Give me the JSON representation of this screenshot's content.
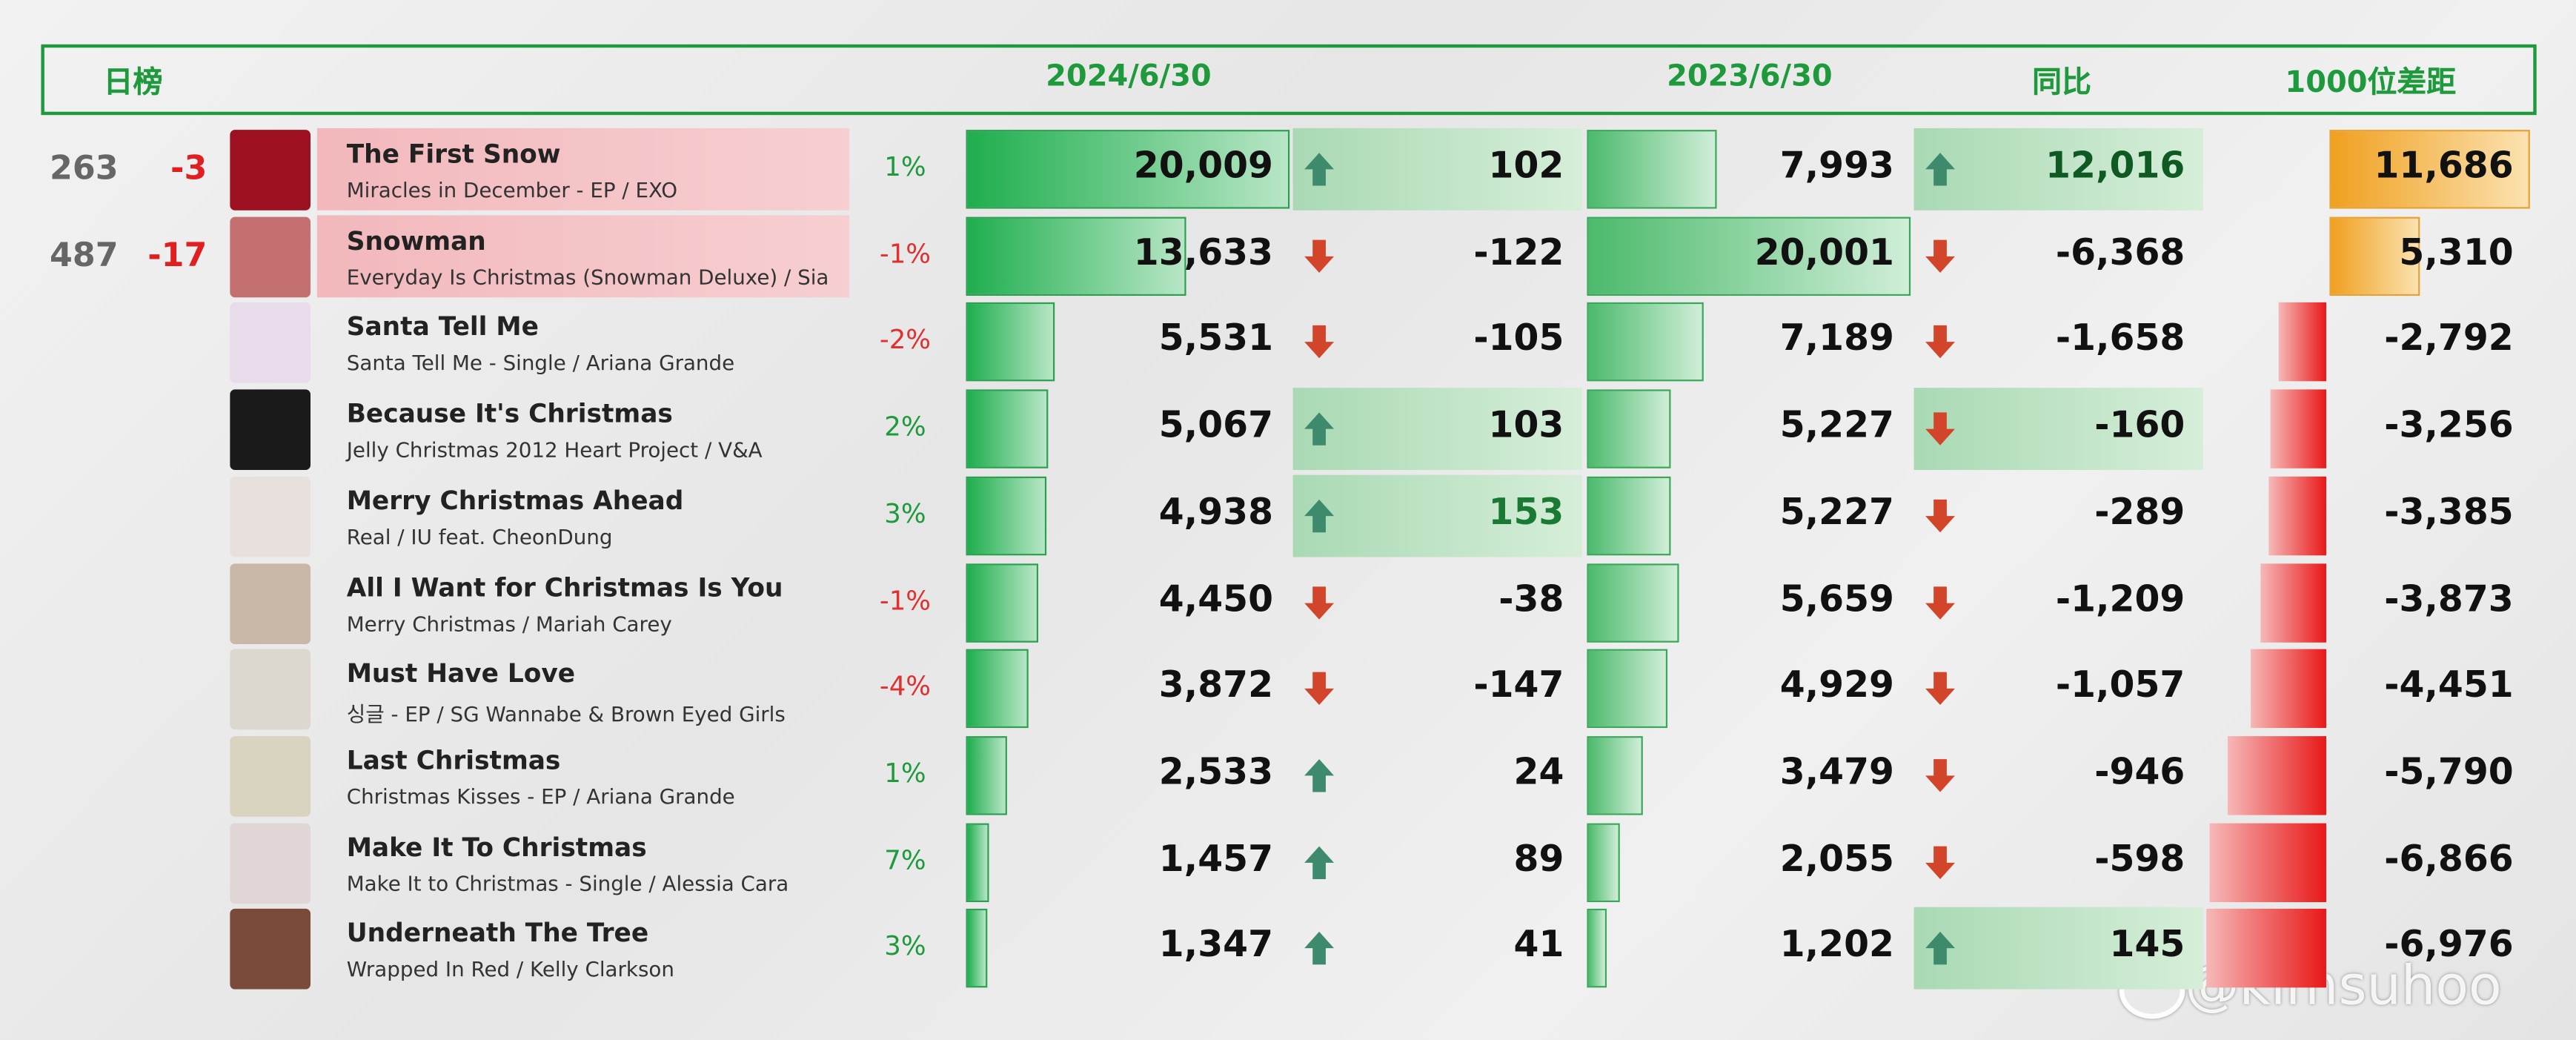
{
  "header": {
    "title": "日榜",
    "date_2024": "2024/6/30",
    "date_2023": "2023/6/30",
    "yoy": "同比",
    "gap": "1000位差距"
  },
  "rows": [
    {
      "rank": "263",
      "rank_change": "-3",
      "title": "The First Snow",
      "subtitle": "Miracles in December - EP / EXO",
      "share": "1%",
      "plays_2024": "20,009",
      "change_2024": "102",
      "change_highlight": true,
      "plays_2023": "7,993",
      "yoy": "12,016",
      "yoy_highlight": true,
      "gap_1000": "11,686",
      "highlight": true
    },
    {
      "rank": "487",
      "rank_change": "-17",
      "title": "Snowman",
      "subtitle": "Everyday Is Christmas (Snowman Deluxe) / Sia",
      "share": "-1%",
      "plays_2024": "13,633",
      "change_2024": "-122",
      "plays_2023": "20,001",
      "yoy": "-6,368",
      "gap_1000": "5,310",
      "highlight": true
    },
    {
      "title": "Santa Tell Me",
      "subtitle": "Santa Tell Me - Single / Ariana Grande",
      "share": "-2%",
      "plays_2024": "5,531",
      "change_2024": "-105",
      "plays_2023": "7,189",
      "yoy": "-1,658",
      "gap_1000": "-2,792"
    },
    {
      "title": "Because It's Christmas",
      "subtitle": "Jelly Christmas 2012 Heart Project  / V&A",
      "share": "2%",
      "plays_2024": "5,067",
      "change_2024": "103",
      "change_highlight": true,
      "plays_2023": "5,227",
      "yoy": "-160",
      "yoy_highlight": true,
      "gap_1000": "-3,256"
    },
    {
      "title": "Merry Christmas Ahead",
      "subtitle": "Real / IU feat. CheonDung",
      "share": "3%",
      "plays_2024": "4,938",
      "change_2024": "153",
      "change_highlight": true,
      "plays_2023": "5,227",
      "yoy": "-289",
      "gap_1000": "-3,385"
    },
    {
      "title": "All I Want for Christmas Is You",
      "subtitle": "Merry Christmas / Mariah Carey",
      "share": "-1%",
      "plays_2024": "4,450",
      "change_2024": "-38",
      "plays_2023": "5,659",
      "yoy": "-1,209",
      "gap_1000": "-3,873"
    },
    {
      "title": "Must Have Love",
      "subtitle": "싱글 - EP / SG Wannabe & Brown Eyed Girls",
      "share": "-4%",
      "plays_2024": "3,872",
      "change_2024": "-147",
      "plays_2023": "4,929",
      "yoy": "-1,057",
      "gap_1000": "-4,451"
    },
    {
      "title": "Last Christmas",
      "subtitle": "Christmas Kisses - EP / Ariana Grande",
      "share": "1%",
      "plays_2024": "2,533",
      "change_2024": "24",
      "plays_2023": "3,479",
      "yoy": "-946",
      "gap_1000": "-5,790"
    },
    {
      "title": "Make It To Christmas",
      "subtitle": "Make It to Christmas - Single / Alessia Cara",
      "share": "7%",
      "plays_2024": "1,457",
      "change_2024": "89",
      "plays_2023": "2,055",
      "yoy": "-598",
      "gap_1000": "-6,866"
    },
    {
      "title": "Underneath The Tree",
      "subtitle": "Wrapped In Red / Kelly Clarkson",
      "share": "3%",
      "plays_2024": "1,347",
      "change_2024": "41",
      "plays_2023": "1,202",
      "yoy": "145",
      "yoy_highlight": true,
      "gap_1000": "-6,976"
    }
  ],
  "watermark": "@kimsuhoo"
}
